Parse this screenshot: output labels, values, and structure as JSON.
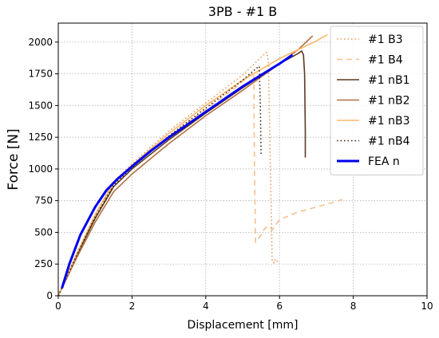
{
  "chart_data": {
    "type": "line",
    "title": "3PB - #1 B",
    "xlabel": "Displacement [mm]",
    "ylabel": "Force [N]",
    "xlim": [
      0,
      10
    ],
    "ylim": [
      0,
      2150
    ],
    "xticks": [
      0,
      2,
      4,
      6,
      8,
      10
    ],
    "yticks": [
      0,
      250,
      500,
      750,
      1000,
      1250,
      1500,
      1750,
      2000
    ],
    "grid": true,
    "legend_position": "top-right",
    "series": [
      {
        "name": "#1 B3",
        "color": "#e69a5a",
        "dash": "dotted",
        "x": [
          0,
          0.5,
          1.0,
          1.5,
          2.0,
          3.0,
          4.0,
          5.0,
          5.5,
          5.6,
          5.65,
          5.7,
          5.78,
          5.8,
          5.85,
          5.88,
          5.95
        ],
        "y": [
          0,
          330,
          640,
          900,
          1040,
          1300,
          1520,
          1740,
          1880,
          1910,
          1920,
          1850,
          600,
          270,
          260,
          290,
          270
        ]
      },
      {
        "name": "#1 B4",
        "color": "#f5c190",
        "dash": "dashed",
        "x": [
          0,
          0.5,
          1.0,
          1.5,
          2.0,
          3.0,
          4.0,
          4.8,
          5.2,
          5.3,
          5.32,
          5.35,
          5.5,
          5.6,
          5.7,
          5.8,
          6.0,
          6.5,
          7.0,
          7.5,
          7.7
        ],
        "y": [
          0,
          320,
          620,
          880,
          1020,
          1260,
          1470,
          1640,
          1740,
          1760,
          1000,
          420,
          480,
          530,
          550,
          520,
          600,
          660,
          700,
          740,
          760
        ]
      },
      {
        "name": "#1 nB1",
        "color": "#5b3a22",
        "dash": "solid",
        "x": [
          0,
          0.5,
          1.0,
          1.5,
          2.0,
          3.0,
          4.0,
          5.0,
          6.0,
          6.5,
          6.6,
          6.65,
          6.68,
          6.7,
          6.7
        ],
        "y": [
          0,
          320,
          610,
          860,
          1000,
          1230,
          1440,
          1640,
          1830,
          1910,
          1930,
          1900,
          1750,
          1300,
          1090
        ]
      },
      {
        "name": "#1 nB2",
        "color": "#b07040",
        "dash": "solid",
        "x": [
          0,
          0.5,
          1.0,
          1.5,
          2.0,
          3.0,
          4.0,
          5.0,
          6.0,
          6.5,
          6.9
        ],
        "y": [
          0,
          300,
          580,
          820,
          960,
          1200,
          1420,
          1620,
          1830,
          1940,
          2050
        ]
      },
      {
        "name": "#1 nB3",
        "color": "#f7b86a",
        "dash": "solid",
        "x": [
          0,
          0.5,
          1.0,
          1.5,
          2.0,
          3.0,
          4.0,
          5.0,
          6.0,
          6.5,
          7.0,
          7.3
        ],
        "y": [
          0,
          330,
          640,
          890,
          1030,
          1280,
          1500,
          1700,
          1870,
          1940,
          2010,
          2060
        ]
      },
      {
        "name": "#1 nB4",
        "color": "#3a2210",
        "dash": "dotted",
        "x": [
          0,
          0.5,
          1.0,
          1.5,
          2.0,
          3.0,
          4.0,
          5.0,
          5.4,
          5.45,
          5.48,
          5.5
        ],
        "y": [
          0,
          320,
          620,
          870,
          1010,
          1260,
          1480,
          1700,
          1800,
          1810,
          1500,
          1100
        ]
      },
      {
        "name": "FEA n",
        "color": "#0000ee",
        "dash": "solid",
        "width": 3,
        "x": [
          0.1,
          0.3,
          0.6,
          1.0,
          1.3,
          1.6,
          2.0,
          2.5,
          3.0,
          3.5,
          4.0,
          4.5,
          5.0,
          5.5,
          6.0,
          6.35
        ],
        "y": [
          60,
          250,
          480,
          700,
          830,
          920,
          1020,
          1140,
          1250,
          1350,
          1450,
          1550,
          1650,
          1740,
          1830,
          1900
        ]
      }
    ]
  }
}
